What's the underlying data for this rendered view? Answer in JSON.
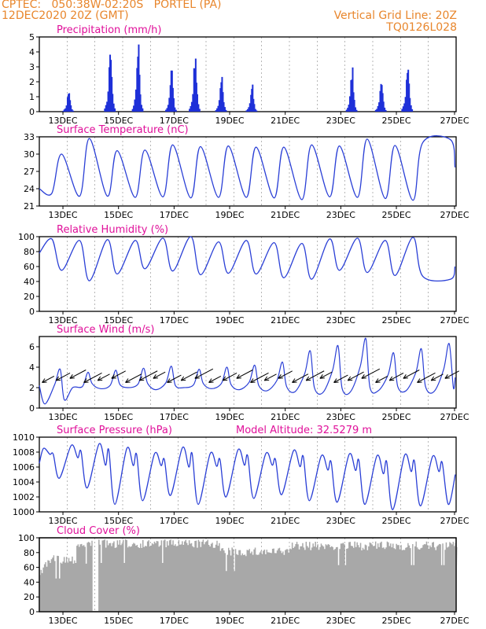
{
  "header": {
    "line1_left": "CPTEC:   050:38W-02:20S   PORTEL (PA)",
    "line2_left": "12DEC2020 20Z (GMT)",
    "line1_right": "Vertical Grid Line: 20Z",
    "line2_right": "TQ0126L028"
  },
  "colors": {
    "header": "#e8862c",
    "panel_title": "#e0109a",
    "line": "#2a3fd6",
    "bar": "#1e30d8",
    "cloud": "#a8a8a8",
    "arrow": "#000000",
    "grid": "#888888"
  },
  "time_axis": {
    "start": "12DEC 20Z",
    "end": "27DEC 20Z",
    "tick_labels": [
      "13DEC",
      "15DEC",
      "17DEC",
      "19DEC",
      "21DEC",
      "23DEC",
      "25DEC",
      "27DEC"
    ]
  },
  "chart_data": [
    {
      "type": "bar",
      "title": "Precipitation (mm/h)",
      "ylim": [
        0,
        5
      ],
      "yticks": [
        "0",
        "1",
        "2",
        "3",
        "4",
        "5"
      ],
      "events": [
        {
          "day": 1.05,
          "peak": 1.3
        },
        {
          "day": 2.55,
          "peak": 4.0
        },
        {
          "day": 3.55,
          "peak": 4.0
        },
        {
          "day": 4.75,
          "peak": 2.7
        },
        {
          "day": 5.6,
          "peak": 3.7
        },
        {
          "day": 6.55,
          "peak": 2.3
        },
        {
          "day": 7.65,
          "peak": 1.6
        },
        {
          "day": 11.25,
          "peak": 2.7
        },
        {
          "day": 12.3,
          "peak": 2.0
        },
        {
          "day": 13.25,
          "peak": 3.3
        }
      ]
    },
    {
      "type": "line",
      "title": "Surface Temperature (nC)",
      "ylim": [
        21,
        33
      ],
      "yticks": [
        "21",
        "24",
        "27",
        "30",
        "33"
      ],
      "day_min": [
        23.2,
        22.7,
        22.7,
        22.5,
        22.6,
        22.4,
        22.5,
        22.5,
        22.4,
        22.1,
        22.6,
        22.5,
        22.3,
        22.0
      ],
      "afternoon_max": [
        30.0,
        32.7,
        30.6,
        30.7,
        31.6,
        31.3,
        31.4,
        31.2,
        31.2,
        31.6,
        31.4,
        32.6,
        31.5,
        32.0,
        32.5
      ],
      "start_value": 24.0,
      "end_value": 27.7
    },
    {
      "type": "line",
      "title": "Relative Humidity (%)",
      "ylim": [
        0,
        100
      ],
      "yticks": [
        "0",
        "20",
        "40",
        "60",
        "80",
        "100"
      ],
      "night_max": [
        97,
        95,
        96,
        95,
        98,
        100,
        93,
        95,
        92,
        91,
        97,
        98,
        95,
        99
      ],
      "afternoon_min": [
        55,
        41,
        50,
        57,
        54,
        49,
        51,
        50,
        45,
        43,
        55,
        52,
        48,
        47,
        43
      ],
      "start_value": 78,
      "end_value": 60
    },
    {
      "type": "line",
      "title": "Surface Wind (m/s)",
      "ylim": [
        0,
        7
      ],
      "yticks": [
        "0",
        "2",
        "4",
        "6"
      ],
      "peaks": [
        3.8,
        3.5,
        3.7,
        3.9,
        4.1,
        3.8,
        4.0,
        4.2,
        4.5,
        5.6,
        6.1,
        6.8,
        5.4,
        5.8,
        6.3
      ],
      "lows": [
        0.4,
        2.0,
        1.9,
        2.0,
        1.8,
        2.0,
        1.9,
        1.8,
        1.7,
        1.6,
        1.5,
        1.6,
        1.7,
        1.7,
        1.6
      ],
      "wind_arrows_every_hours": 12
    },
    {
      "type": "line",
      "title": "Surface Pressure (hPa)",
      "annotation": "Model Altitude: 32.5279 m",
      "ylim": [
        1000,
        1010
      ],
      "yticks": [
        "1000",
        "1002",
        "1004",
        "1006",
        "1008",
        "1010"
      ],
      "peaks": [
        1008.5,
        1008.9,
        1009.1,
        1008.5,
        1007.8,
        1008.6,
        1007.8,
        1008.3,
        1007.8,
        1008.2,
        1007.5,
        1007.7,
        1007.5,
        1007.6,
        1007.4
      ],
      "troughs": [
        1004.5,
        1003.2,
        1001.0,
        1001.5,
        1002.2,
        1001.0,
        1002.0,
        1001.8,
        1002.3,
        1001.5,
        1001.3,
        1001.0,
        1000.3,
        1000.8,
        1001.0
      ]
    },
    {
      "type": "area",
      "title": "Cloud Cover (%)",
      "ylim": [
        0,
        100
      ],
      "yticks": [
        "0",
        "20",
        "40",
        "60",
        "80",
        "100"
      ],
      "segments": [
        {
          "from": 0.0,
          "to": 1.3,
          "level": 75
        },
        {
          "from": 1.3,
          "to": 1.9,
          "level": 95
        },
        {
          "from": 1.9,
          "to": 2.1,
          "level": 5
        },
        {
          "from": 2.1,
          "to": 6.5,
          "level": 96
        },
        {
          "from": 6.5,
          "to": 9.0,
          "level": 85
        },
        {
          "from": 9.0,
          "to": 15.0,
          "level": 93
        }
      ],
      "start_value": 58,
      "end_value": 62
    }
  ]
}
